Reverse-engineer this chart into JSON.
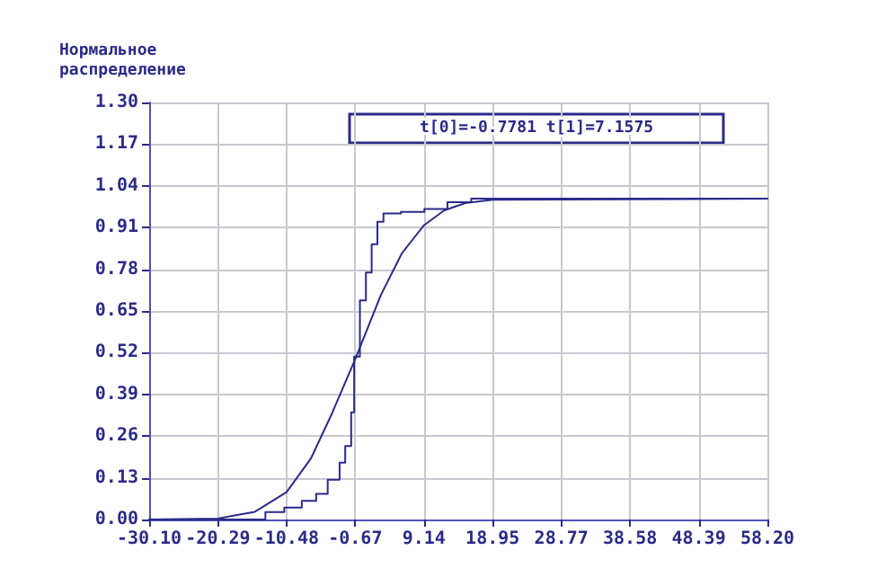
{
  "chart_data": {
    "type": "line",
    "ylabel": "Нормальное распределение",
    "annotations": [
      "t[0]=-0.7781 t[1]=7.1575"
    ],
    "xlim": [
      -30.1,
      58.2
    ],
    "xticks": [
      {
        "value": -30.1,
        "label": "-30.10"
      },
      {
        "value": -20.29,
        "label": "-20.29"
      },
      {
        "value": -10.48,
        "label": "-10.48"
      },
      {
        "value": -0.67,
        "label": "-0.67"
      },
      {
        "value": 9.14,
        "label": "9.14"
      },
      {
        "value": 18.95,
        "label": "18.95"
      },
      {
        "value": 28.77,
        "label": "28.77"
      },
      {
        "value": 38.58,
        "label": "38.58"
      },
      {
        "value": 48.39,
        "label": "48.39"
      },
      {
        "value": 58.2,
        "label": "58.20"
      }
    ],
    "ylim": [
      0,
      1.3
    ],
    "yticks": [
      {
        "value": 0,
        "label": "0.00"
      },
      {
        "value": 0.13,
        "label": "0.13"
      },
      {
        "value": 0.26,
        "label": "0.26"
      },
      {
        "value": 0.39,
        "label": "0.39"
      },
      {
        "value": 0.52,
        "label": "0.52"
      },
      {
        "value": 0.65,
        "label": "0.65"
      },
      {
        "value": 0.78,
        "label": "0.78"
      },
      {
        "value": 0.91,
        "label": "0.91"
      },
      {
        "value": 1.04,
        "label": "1.04"
      },
      {
        "value": 1.17,
        "label": "1.17"
      },
      {
        "value": 1.3,
        "label": "1.30"
      }
    ],
    "grid": true,
    "marker": "none",
    "line_style": "solid",
    "series": [
      {
        "color": "#2a2a8a",
        "x": [
          -30.1,
          -20.29,
          -15,
          -10.48,
          -7,
          -4,
          -0.67,
          3,
          6,
          9.14,
          12,
          15,
          18.95,
          58.2
        ],
        "values": [
          0,
          0.003,
          0.024,
          0.085,
          0.19,
          0.33,
          0.5,
          0.7,
          0.83,
          0.917,
          0.963,
          0.986,
          0.997,
          1.0
        ]
      },
      {
        "type": "step",
        "color": "#2a2a8a",
        "x": [
          -30.1,
          -13.5,
          -10.8,
          -8.3,
          -6.25,
          -4.6,
          -2.9,
          -2.1,
          -1.25,
          -0.82,
          0.0,
          0.86,
          1.68,
          2.5,
          3.36,
          5.86,
          9.2,
          12.5,
          15.9,
          58.2
        ],
        "values": [
          0,
          0.023,
          0.037,
          0.058,
          0.08,
          0.124,
          0.177,
          0.229,
          0.334,
          0.508,
          0.683,
          0.77,
          0.858,
          0.928,
          0.954,
          0.959,
          0.968,
          0.989,
          1.0,
          1.0
        ]
      }
    ]
  }
}
